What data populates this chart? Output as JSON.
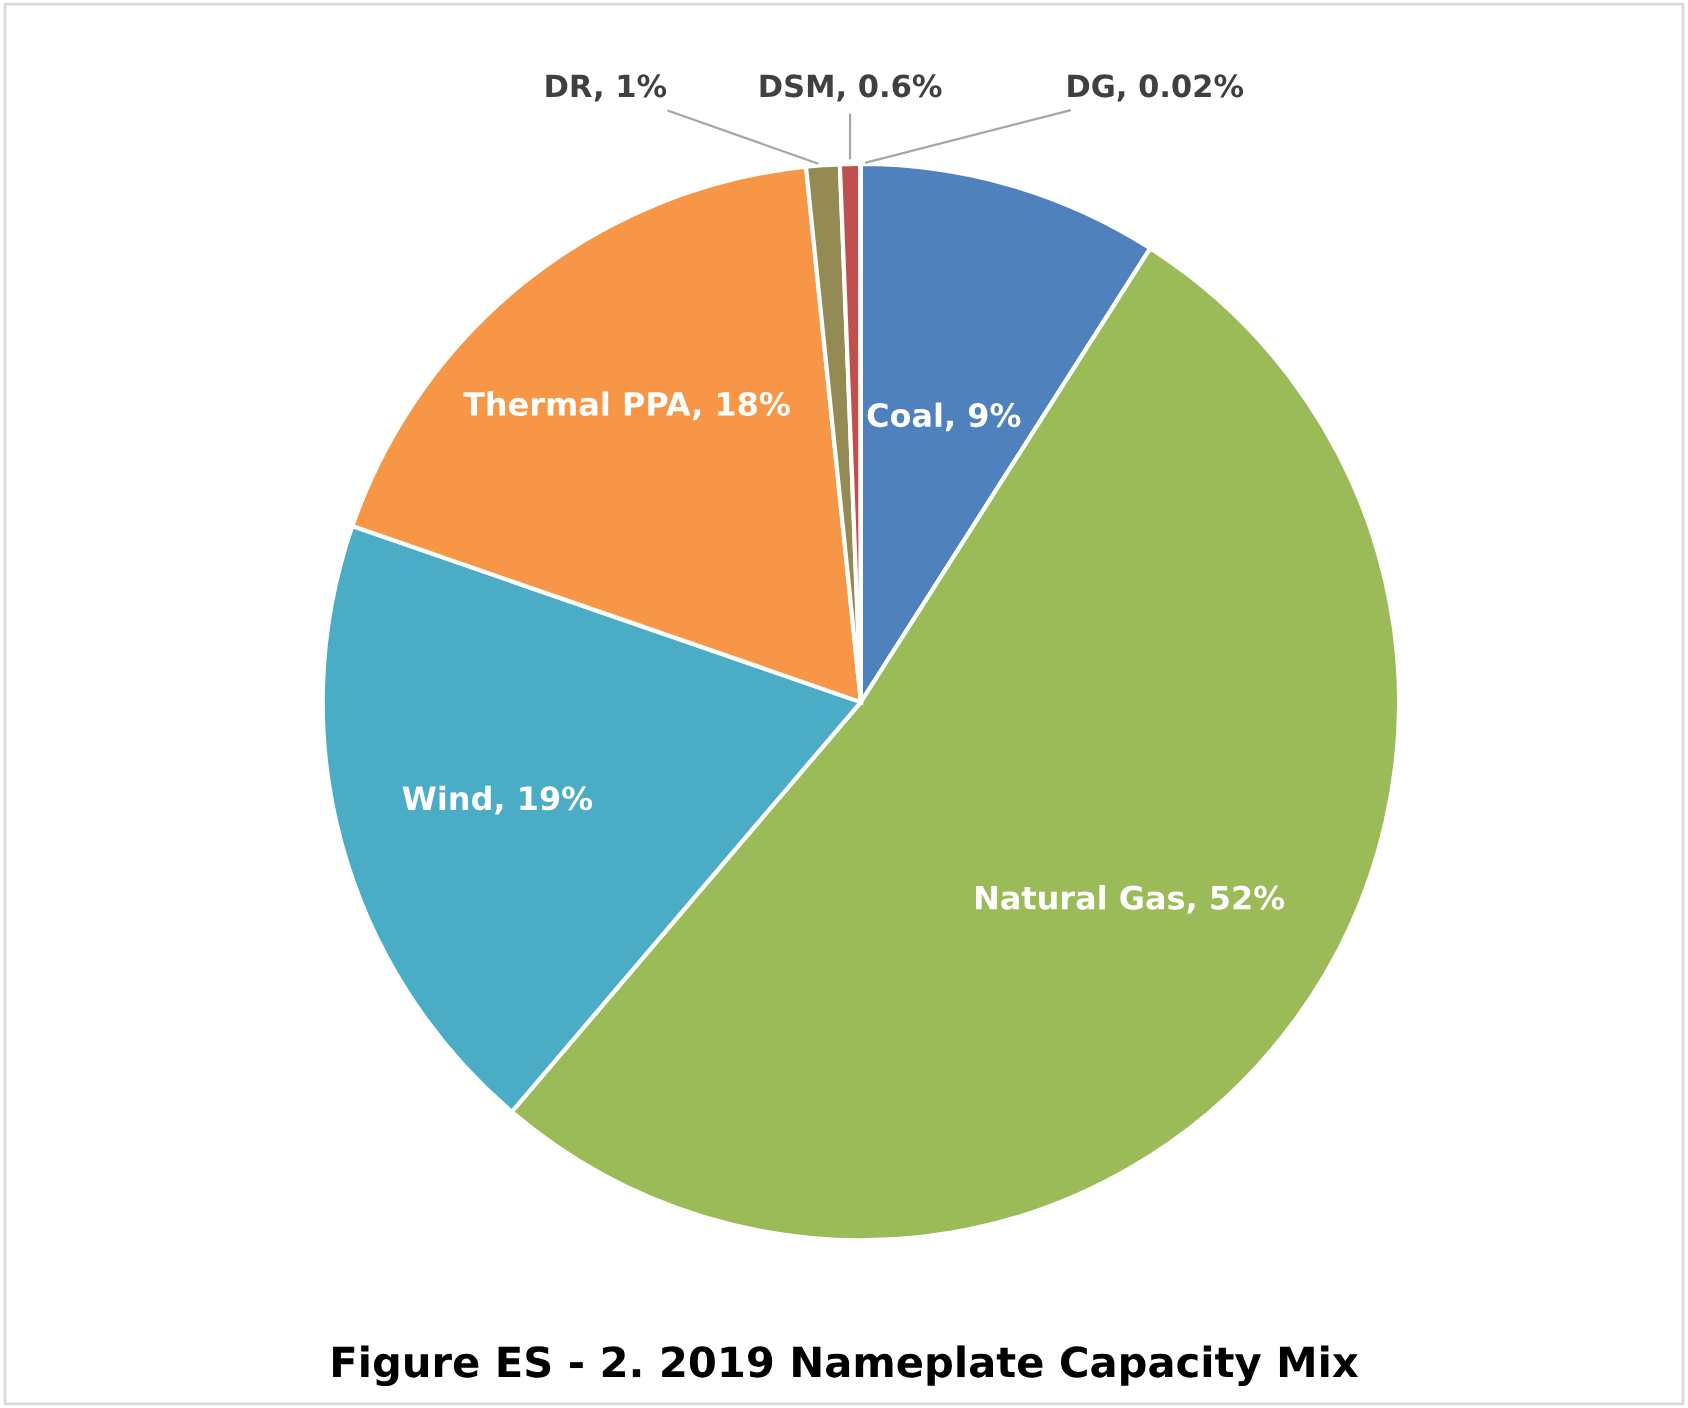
{
  "chart_data": {
    "type": "pie",
    "title": "Figure ES - 2. 2019 Nameplate Capacity Mix",
    "categories": [
      "Coal",
      "Natural Gas",
      "Wind",
      "Thermal PPA",
      "DR",
      "DSM",
      "DG"
    ],
    "values": [
      9,
      52,
      19,
      18,
      1,
      0.6,
      0.02
    ],
    "value_labels": [
      "9%",
      "52%",
      "19%",
      "18%",
      "1%",
      "0.6%",
      "0.02%"
    ],
    "colors": [
      "#4f81bd",
      "#9bbb59",
      "#4bacc6",
      "#f79646",
      "#948a54",
      "#c0504d",
      "#8064a2"
    ],
    "legend": false
  }
}
